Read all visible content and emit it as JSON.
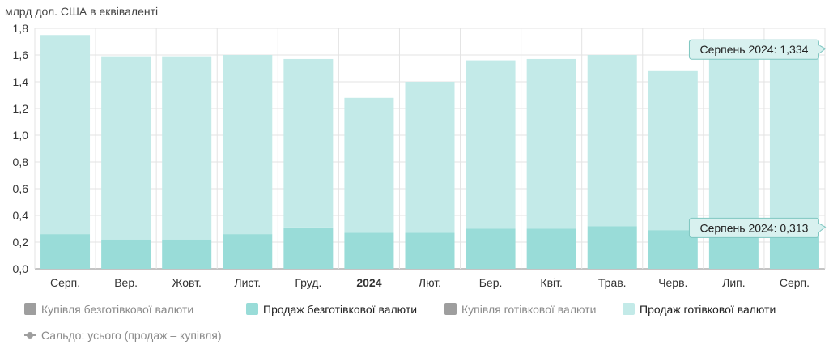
{
  "chart_data": {
    "type": "bar",
    "unit_label": "млрд дол. США в еквіваленті",
    "categories": [
      "Серп.",
      "Вер.",
      "Жовт.",
      "Лист.",
      "Груд.",
      "2024",
      "Лют.",
      "Бер.",
      "Квіт.",
      "Трав.",
      "Черв.",
      "Лип.",
      "Серп."
    ],
    "bold_categories": [
      "2024"
    ],
    "ylim": [
      0,
      1.8
    ],
    "yticks": [
      "0,0",
      "0,2",
      "0,4",
      "0,6",
      "0,8",
      "1,0",
      "1,2",
      "1,4",
      "1,6",
      "1,8"
    ],
    "grid": true,
    "stacked": true,
    "series": [
      {
        "name": "Продаж безготівкової валюти",
        "color": "#99dcd8",
        "values": [
          0.26,
          0.22,
          0.22,
          0.26,
          0.31,
          0.27,
          0.27,
          0.3,
          0.3,
          0.32,
          0.29,
          0.31,
          0.313
        ]
      },
      {
        "name": "Продаж готівкової валюти",
        "color": "#c3eae8",
        "values": [
          1.49,
          1.37,
          1.37,
          1.34,
          1.26,
          1.01,
          1.13,
          1.26,
          1.27,
          1.28,
          1.19,
          1.31,
          1.334
        ]
      }
    ],
    "legend": [
      {
        "label": "Купівля безготівкової валюти",
        "color": "#9e9e9e",
        "inactive": true,
        "marker": "square"
      },
      {
        "label": "Продаж безготівкової валюти",
        "color": "#99dcd8",
        "inactive": false,
        "marker": "square"
      },
      {
        "label": "Купівля готівкової валюти",
        "color": "#9e9e9e",
        "inactive": true,
        "marker": "square"
      },
      {
        "label": "Продаж готівкової валюти",
        "color": "#c3eae8",
        "inactive": false,
        "marker": "square"
      },
      {
        "label": "Сальдо: усього (продаж – купівля)",
        "color": "#9e9e9e",
        "inactive": true,
        "marker": "line"
      }
    ],
    "legend_placement": "bottom",
    "tooltips": [
      {
        "text": "Серпень 2024: 1,334"
      },
      {
        "text": "Серпень 2024: 0,313"
      }
    ]
  }
}
